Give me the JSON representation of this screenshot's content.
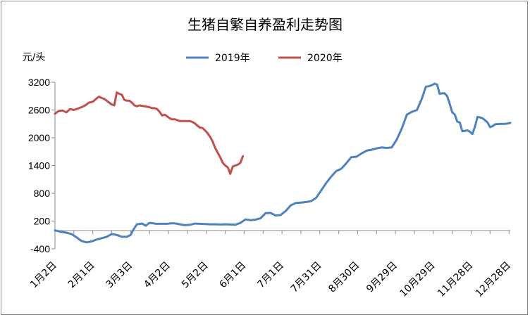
{
  "chart_data": {
    "type": "line",
    "title": "生猪自繁自养盈利走势图",
    "ylabel": "元/头",
    "xlabel": "",
    "ylim": [
      -400,
      3200
    ],
    "yticks": [
      -400,
      200,
      800,
      1400,
      2000,
      2600,
      3200
    ],
    "x_ticks": [
      "1月2日",
      "2月1日",
      "3月3日",
      "4月2日",
      "5月2日",
      "6月1日",
      "7月1日",
      "7月31日",
      "8月30日",
      "9月29日",
      "10月29日",
      "11月28日",
      "12月28日"
    ],
    "x_range_days": [
      1,
      362
    ],
    "grid": false,
    "legend_position": "top",
    "series": [
      {
        "name": "2019年",
        "color": "#4f81bd",
        "x": [
          1,
          5,
          10,
          14,
          18,
          22,
          26,
          30,
          34,
          38,
          42,
          46,
          50,
          54,
          58,
          61,
          63,
          66,
          70,
          73,
          76,
          79,
          81,
          84,
          87,
          90,
          93,
          96,
          100,
          104,
          108,
          112,
          116,
          120,
          124,
          128,
          132,
          136,
          140,
          144,
          148,
          152,
          156,
          160,
          164,
          168,
          172,
          176,
          180,
          184,
          188,
          192,
          196,
          200,
          204,
          208,
          212,
          216,
          220,
          224,
          228,
          232,
          236,
          240,
          244,
          248,
          252,
          256,
          260,
          264,
          268,
          272,
          276,
          280,
          284,
          288,
          292,
          295,
          298,
          300,
          302,
          304,
          306,
          308,
          310,
          312,
          314,
          316,
          318,
          320,
          322,
          324,
          326,
          328,
          330,
          332,
          334,
          336,
          338,
          340,
          342,
          344,
          346,
          348,
          350,
          354,
          358,
          362
        ],
        "values": [
          0,
          -30,
          -50,
          -80,
          -150,
          -230,
          -260,
          -240,
          -200,
          -170,
          -140,
          -80,
          -100,
          -140,
          -140,
          -100,
          5,
          130,
          145,
          100,
          160,
          150,
          140,
          140,
          140,
          140,
          150,
          150,
          130,
          110,
          120,
          145,
          140,
          135,
          130,
          130,
          125,
          130,
          125,
          120,
          160,
          235,
          220,
          230,
          260,
          370,
          375,
          320,
          330,
          420,
          540,
          590,
          600,
          610,
          630,
          700,
          860,
          1020,
          1160,
          1280,
          1330,
          1450,
          1580,
          1590,
          1660,
          1720,
          1740,
          1770,
          1790,
          1780,
          1790,
          1960,
          2200,
          2500,
          2560,
          2600,
          2850,
          3100,
          3120,
          3140,
          3170,
          3150,
          2950,
          2960,
          2960,
          2900,
          2730,
          2550,
          2500,
          2350,
          2330,
          2140,
          2150,
          2160,
          2130,
          2080,
          2240,
          2450,
          2440,
          2420,
          2380,
          2330,
          2230,
          2250,
          2290,
          2300,
          2300,
          2320
        ]
      },
      {
        "name": "2020年",
        "color": "#c0504d",
        "x": [
          1,
          4,
          7,
          10,
          13,
          16,
          19,
          22,
          25,
          28,
          31,
          34,
          36,
          38,
          40,
          42,
          44,
          46,
          48,
          50,
          52,
          54,
          56,
          58,
          60,
          62,
          64,
          66,
          68,
          70,
          72,
          74,
          76,
          78,
          80,
          82,
          84,
          86,
          88,
          90,
          92,
          94,
          96,
          98,
          100,
          102,
          104,
          106,
          108,
          110,
          112,
          114,
          116,
          118,
          120,
          122,
          124,
          126,
          128,
          130,
          132,
          134,
          136,
          138,
          140,
          142,
          144,
          146,
          148,
          150
        ],
        "values": [
          2520,
          2580,
          2590,
          2550,
          2620,
          2600,
          2630,
          2660,
          2700,
          2760,
          2780,
          2850,
          2890,
          2860,
          2840,
          2800,
          2760,
          2720,
          2700,
          2980,
          2950,
          2930,
          2820,
          2800,
          2800,
          2760,
          2700,
          2680,
          2700,
          2690,
          2680,
          2670,
          2660,
          2640,
          2640,
          2620,
          2560,
          2480,
          2500,
          2460,
          2420,
          2400,
          2400,
          2380,
          2360,
          2360,
          2360,
          2360,
          2360,
          2340,
          2310,
          2260,
          2220,
          2210,
          2160,
          2100,
          2020,
          1920,
          1780,
          1680,
          1580,
          1460,
          1400,
          1360,
          1220,
          1380,
          1400,
          1420,
          1460,
          1600
        ]
      }
    ]
  }
}
